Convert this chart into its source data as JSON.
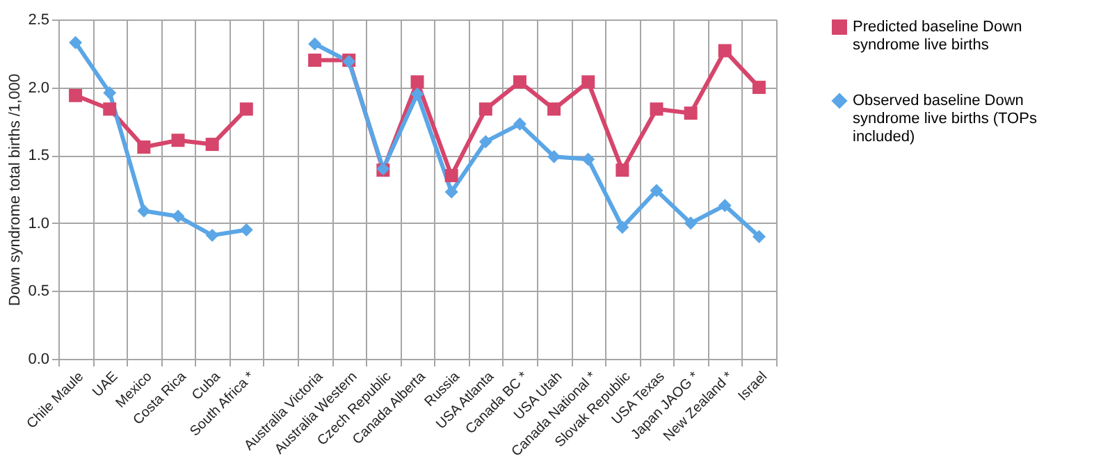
{
  "chart_data": {
    "type": "line",
    "ylabel": "Down syndrome total births /1,000",
    "categories": [
      "Chile Maule",
      "UAE",
      "Mexico",
      "Costa Rica",
      "Cuba",
      "South Africa *",
      null,
      "Australia Victoria",
      "Australia Western",
      "Czech Republic",
      "Canada Alberta",
      "Russia",
      "USA Atlanta",
      "Canada BC *",
      "USA Utah",
      "Canada National *",
      "Slovak Republic",
      "USA Texas",
      "Japan JAOG *",
      "New Zealand *",
      "Israel"
    ],
    "series": [
      {
        "name": "Predicted baseline Down syndrome live births",
        "color": "#d6456b",
        "marker": "square",
        "values": [
          1.94,
          1.84,
          1.56,
          1.61,
          1.58,
          1.84,
          null,
          2.2,
          2.2,
          1.39,
          2.04,
          1.35,
          1.84,
          2.04,
          1.84,
          2.04,
          1.39,
          1.84,
          1.81,
          2.27,
          2.0
        ]
      },
      {
        "name": "Observed baseline Down syndrome live births (TOPs included)",
        "color": "#5aa6e6",
        "marker": "diamond",
        "values": [
          2.33,
          1.96,
          1.09,
          1.05,
          0.91,
          0.95,
          null,
          2.32,
          2.19,
          1.4,
          1.95,
          1.23,
          1.6,
          1.73,
          1.49,
          1.47,
          0.97,
          1.24,
          1.0,
          1.13,
          0.9
        ]
      }
    ],
    "ylim": [
      0,
      2.5
    ],
    "yticks": [
      {
        "value": 0,
        "label": "0.0"
      },
      {
        "value": 0.5,
        "label": "0.5"
      },
      {
        "value": 1,
        "label": "1.0"
      },
      {
        "value": 1.5,
        "label": "1.5"
      },
      {
        "value": 2,
        "label": "2.0"
      },
      {
        "value": 2.5,
        "label": "2.5"
      }
    ],
    "grid": true,
    "legend": "right",
    "line_style": "solid"
  }
}
